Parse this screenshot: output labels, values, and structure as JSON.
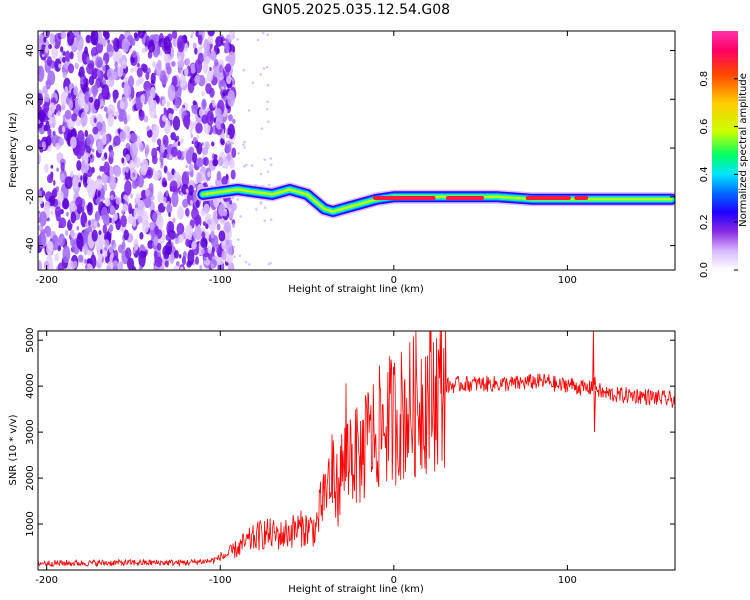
{
  "title": "GN05.2025.035.12.54.G08",
  "chart_data": [
    {
      "type": "heatmap",
      "xlabel": "Height of straight line (km)",
      "ylabel": "Frequency (Hz)",
      "xlim": [
        -205,
        162
      ],
      "ylim": [
        -50,
        48
      ],
      "xticks": [
        -200,
        -100,
        0,
        100
      ],
      "yticks": [
        -40,
        -20,
        0,
        20,
        40
      ],
      "colorbar": {
        "label": "Normalized spectral amplitude",
        "range": [
          0,
          1
        ],
        "ticks": [
          0.0,
          0.2,
          0.4,
          0.6,
          0.8
        ],
        "tick_labels": [
          "0.0",
          "0.2",
          "0.4",
          "0.6",
          "0.8"
        ],
        "colormap": [
          "#ffffff",
          "#d9b8ff",
          "#8a2be2",
          "#2200ff",
          "#0066ff",
          "#00e5ff",
          "#00ff66",
          "#ccff00",
          "#ffcc00",
          "#ff4400",
          "#ff0066",
          "#ff33aa"
        ]
      },
      "ridge": {
        "x": [
          -110,
          -100,
          -90,
          -80,
          -70,
          -60,
          -55,
          -50,
          -45,
          -40,
          -35,
          -30,
          -25,
          -20,
          -10,
          0,
          20,
          40,
          60,
          80,
          100,
          120,
          140,
          160
        ],
        "freq": [
          -19,
          -18,
          -17,
          -18,
          -19,
          -17,
          -18,
          -19,
          -22,
          -25,
          -26,
          -25,
          -24,
          -23,
          -21,
          -20,
          -20,
          -20,
          -20,
          -21,
          -21,
          -21,
          -21,
          -21
        ]
      },
      "noise_region_x": [
        -205,
        -100
      ]
    },
    {
      "type": "line",
      "xlabel": "Height of straight line (km)",
      "ylabel": "SNR (10 * v/v)",
      "xlim": [
        -205,
        162
      ],
      "ylim": [
        0,
        5200
      ],
      "xticks": [
        -200,
        -100,
        0,
        100
      ],
      "yticks": [
        1000,
        2000,
        3000,
        4000,
        5000
      ],
      "color": "#ff0000",
      "series": [
        {
          "x": [
            -205,
            -180,
            -150,
            -120,
            -105,
            -95,
            -85,
            -75,
            -65,
            -55,
            -45,
            -40,
            -35,
            -32,
            -30,
            -25,
            -20,
            -15,
            -10,
            -5,
            0,
            5,
            10,
            15,
            20,
            25,
            30,
            40,
            50,
            60,
            70,
            80,
            90,
            95,
            100,
            105,
            110,
            113,
            115,
            117,
            120,
            130,
            140,
            150,
            162
          ],
          "values": [
            150,
            150,
            160,
            160,
            200,
            350,
            600,
            800,
            750,
            900,
            900,
            1700,
            2100,
            1700,
            2200,
            2600,
            2400,
            2800,
            3000,
            3200,
            3300,
            3400,
            3500,
            3700,
            3800,
            3900,
            4000,
            4050,
            4050,
            4050,
            4050,
            4100,
            4100,
            4000,
            4050,
            4000,
            3950,
            3950,
            4100,
            3950,
            3850,
            3800,
            3800,
            3750,
            3700
          ]
        }
      ]
    }
  ]
}
